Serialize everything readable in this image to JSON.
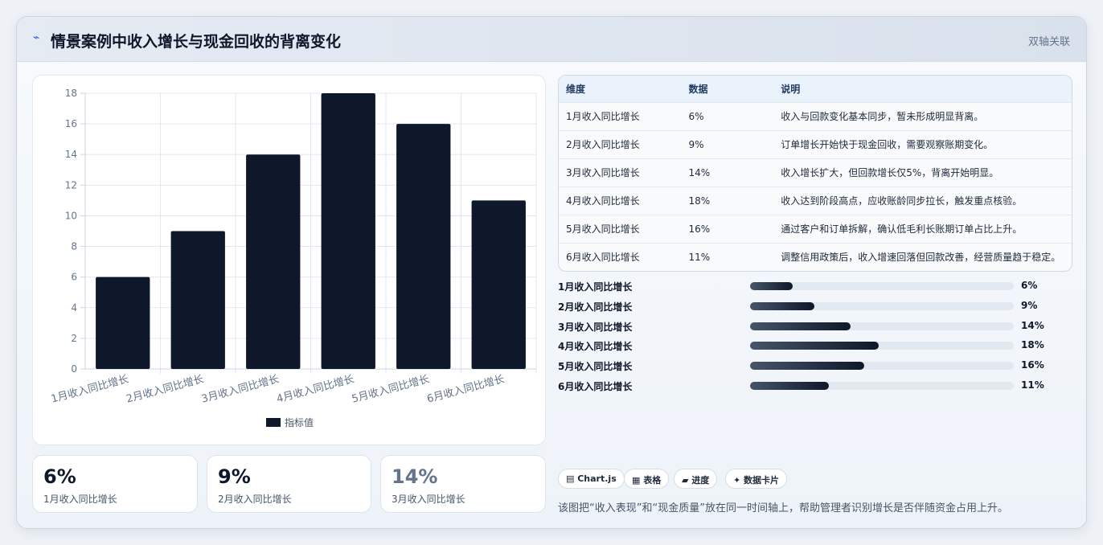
{
  "header": {
    "title": "情景案例中收入增长与现金回收的背离变化",
    "badge": "双轴关联"
  },
  "chart_data": {
    "type": "bar",
    "categories": [
      "1月收入同比增长",
      "2月收入同比增长",
      "3月收入同比增长",
      "4月收入同比增长",
      "5月收入同比增长",
      "6月收入同比增长"
    ],
    "series": [
      {
        "name": "指标值",
        "color": "#0f172a",
        "values": [
          6,
          9,
          14,
          18,
          16,
          11
        ]
      }
    ],
    "ylim": [
      0,
      18
    ],
    "yticks": [
      0,
      2,
      4,
      6,
      8,
      10,
      12,
      14,
      16,
      18
    ],
    "grid": true,
    "legend": "bottom"
  },
  "table": {
    "headers": [
      "维度",
      "数据",
      "说明"
    ],
    "rows": [
      [
        "1月收入同比增长",
        "6%",
        "收入与回款变化基本同步，暂未形成明显背离。"
      ],
      [
        "2月收入同比增长",
        "9%",
        "订单增长开始快于现金回收，需要观察账期变化。"
      ],
      [
        "3月收入同比增长",
        "14%",
        "收入增长扩大，但回款增长仅5%，背离开始明显。"
      ],
      [
        "4月收入同比增长",
        "18%",
        "收入达到阶段高点，应收账龄同步拉长，触发重点核验。"
      ],
      [
        "5月收入同比增长",
        "16%",
        "通过客户和订单拆解，确认低毛利长账期订单占比上升。"
      ],
      [
        "6月收入同比增长",
        "11%",
        "调整信用政策后，收入增速回落但回款改善，经营质量趋于稳定。"
      ]
    ]
  },
  "progress": [
    {
      "label": "1月收入同比增长",
      "value": 6,
      "value_label": "6%"
    },
    {
      "label": "2月收入同比增长",
      "value": 9,
      "value_label": "9%"
    },
    {
      "label": "3月收入同比增长",
      "value": 14,
      "value_label": "14%"
    },
    {
      "label": "4月收入同比增长",
      "value": 18,
      "value_label": "18%"
    },
    {
      "label": "5月收入同比增长",
      "value": 16,
      "value_label": "16%"
    },
    {
      "label": "6月收入同比增长",
      "value": 11,
      "value_label": "11%"
    }
  ],
  "cards": [
    {
      "value": "6%",
      "label": "1月收入同比增长"
    },
    {
      "value": "9%",
      "label": "2月收入同比增长"
    },
    {
      "value": "14%",
      "label": "3月收入同比增长"
    }
  ],
  "tags": [
    "Chart.js",
    "表格",
    "进度",
    "数据卡片"
  ],
  "note": "该图把“收入表现”和“现金质量”放在同一时间轴上，帮助管理者识别增长是否伴随资金占用上升。"
}
